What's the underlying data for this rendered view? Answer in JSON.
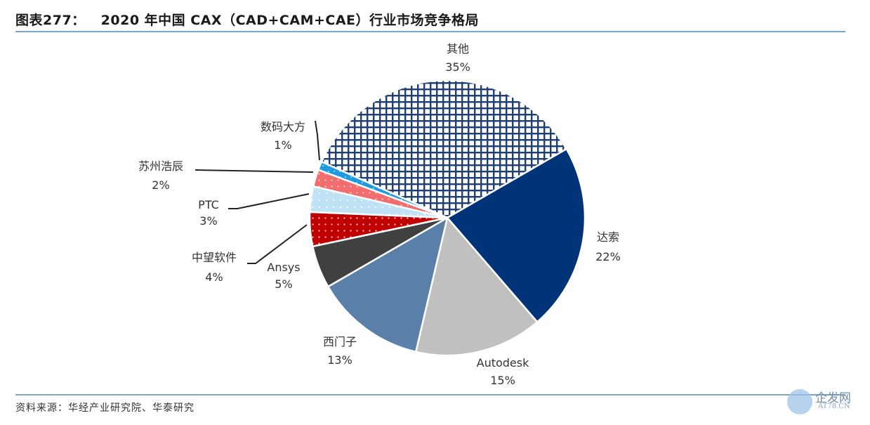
{
  "header": {
    "figure_no": "图表277：",
    "title": "2020 年中国 CAX（CAD+CAM+CAE）行业市场竞争格局"
  },
  "footer": {
    "source": "资料来源：华经产业研究院、华泰研究"
  },
  "watermark": {
    "name": "企发网",
    "domain": "AT78.CN"
  },
  "chart_data": {
    "type": "pie",
    "title": "2020 年中国 CAX（CAD+CAM+CAE）行业市场竞争格局",
    "unit": "%",
    "slices": [
      {
        "label": "其他",
        "value": 35,
        "display": "35%",
        "color": "#1f3f74",
        "pattern": "crosshatch"
      },
      {
        "label": "达索",
        "value": 22,
        "display": "22%",
        "color": "#003377",
        "pattern": "solid"
      },
      {
        "label": "Autodesk",
        "value": 15,
        "display": "15%",
        "color": "#c0c0c0",
        "pattern": "solid"
      },
      {
        "label": "西门子",
        "value": 13,
        "display": "13%",
        "color": "#5a7fa8",
        "pattern": "solid"
      },
      {
        "label": "Ansys",
        "value": 5,
        "display": "5%",
        "color": "#404040",
        "pattern": "solid"
      },
      {
        "label": "中望软件",
        "value": 4,
        "display": "4%",
        "color": "#c00000",
        "pattern": "dots"
      },
      {
        "label": "PTC",
        "value": 3,
        "display": "3%",
        "color": "#bfe3f5",
        "pattern": "dots"
      },
      {
        "label": "苏州浩辰",
        "value": 2,
        "display": "2%",
        "color": "#f26d6d",
        "pattern": "dots"
      },
      {
        "label": "数码大方",
        "value": 1,
        "display": "1%",
        "color": "#1e9be0",
        "pattern": "dots"
      }
    ],
    "legend": "none (data labels with leader lines)"
  }
}
